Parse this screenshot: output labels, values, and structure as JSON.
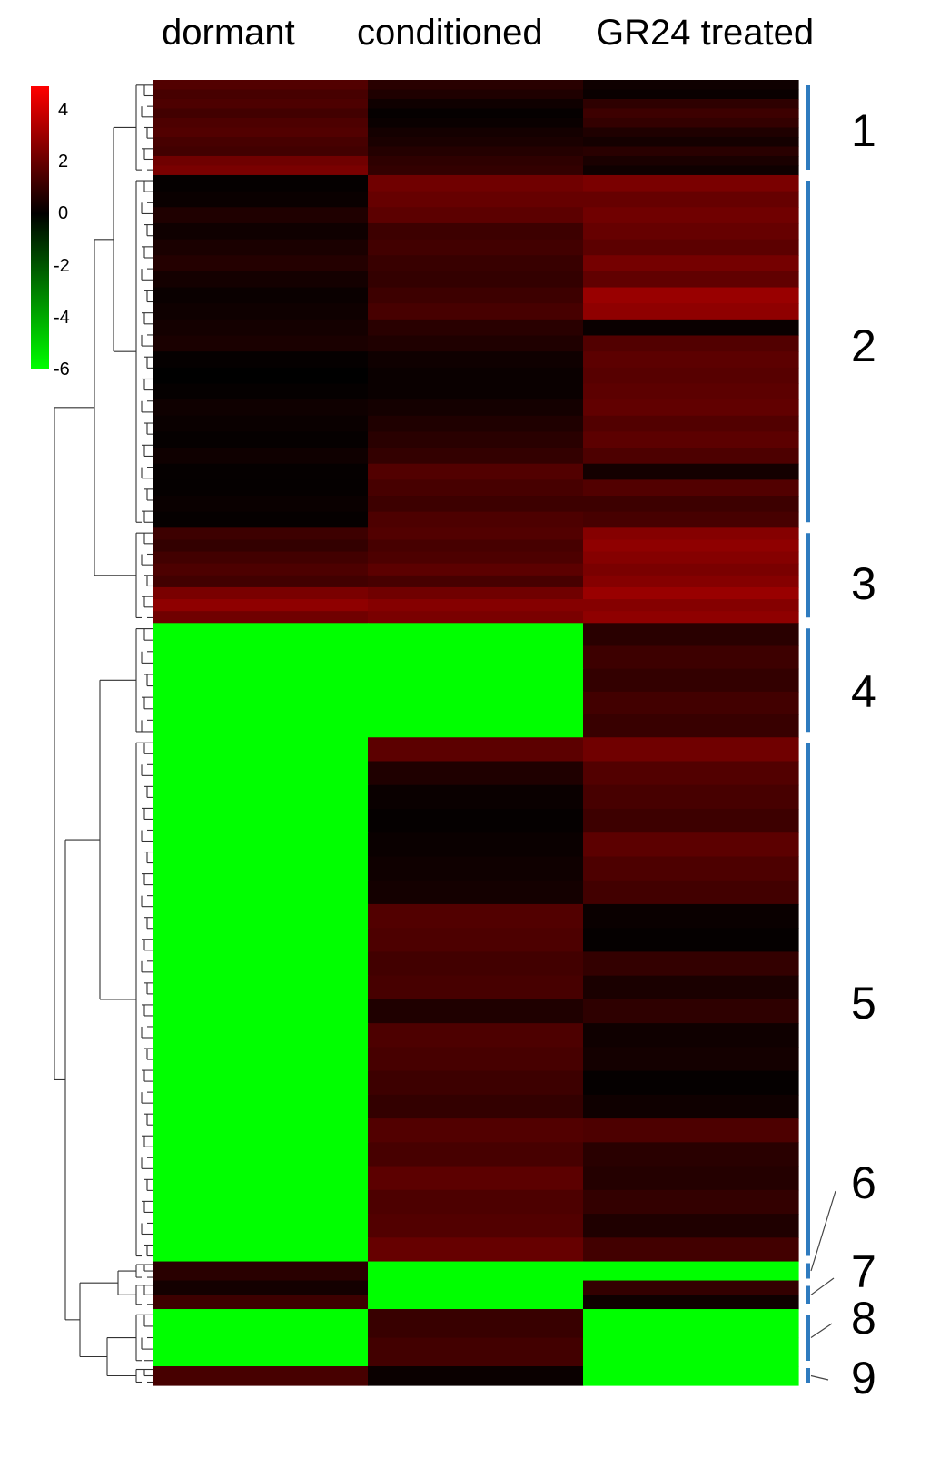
{
  "chart_data": {
    "type": "heatmap",
    "columns": [
      "dormant",
      "conditioned",
      "GR24 treated"
    ],
    "color_scale": {
      "min": -6,
      "max": 5,
      "ticks": [
        "4",
        "2",
        "0",
        "-2",
        "-4",
        "-6"
      ],
      "low_color": "#00ff00",
      "mid_color": "#000000",
      "high_color": "#ff0000"
    },
    "clusters": [
      {
        "label": "1",
        "rows": 20,
        "values": [
          [
            1.6,
            0.8,
            0.3
          ],
          [
            1.4,
            0.6,
            0.2
          ],
          [
            1.5,
            0.3,
            0.9
          ],
          [
            1.3,
            0.1,
            1.2
          ],
          [
            1.5,
            0.2,
            1.0
          ],
          [
            1.6,
            0.4,
            0.6
          ],
          [
            1.4,
            0.5,
            0.4
          ],
          [
            1.3,
            0.7,
            0.8
          ],
          [
            2.2,
            0.9,
            0.5
          ],
          [
            2.4,
            1.0,
            0.3
          ]
        ]
      },
      {
        "label": "2",
        "rows": 74,
        "values": [
          [
            0.1,
            2.2,
            2.4
          ],
          [
            0.2,
            2.0,
            2.0
          ],
          [
            0.6,
            1.8,
            2.2
          ],
          [
            0.3,
            1.2,
            2.0
          ],
          [
            0.5,
            1.3,
            1.8
          ],
          [
            0.7,
            1.1,
            2.3
          ],
          [
            0.4,
            1.0,
            1.9
          ],
          [
            0.2,
            1.2,
            3.0
          ],
          [
            0.3,
            1.4,
            2.8
          ],
          [
            0.4,
            0.8,
            0.2
          ],
          [
            0.5,
            0.6,
            1.6
          ],
          [
            0.1,
            0.3,
            1.8
          ],
          [
            0.0,
            0.2,
            1.7
          ],
          [
            0.1,
            0.2,
            1.8
          ],
          [
            0.3,
            0.4,
            1.9
          ],
          [
            0.2,
            0.6,
            1.6
          ],
          [
            0.1,
            0.8,
            1.8
          ],
          [
            0.3,
            1.0,
            1.5
          ],
          [
            0.1,
            1.6,
            0.4
          ],
          [
            0.1,
            1.4,
            1.6
          ],
          [
            0.2,
            1.2,
            1.2
          ],
          [
            0.1,
            1.5,
            1.4
          ]
        ]
      },
      {
        "label": "3",
        "rows": 20,
        "values": [
          [
            1.2,
            1.6,
            2.6
          ],
          [
            1.0,
            1.4,
            2.8
          ],
          [
            1.3,
            1.5,
            2.6
          ],
          [
            1.5,
            1.8,
            2.4
          ],
          [
            1.3,
            1.4,
            2.6
          ],
          [
            2.4,
            2.2,
            3.0
          ],
          [
            2.8,
            2.6,
            2.6
          ],
          [
            2.2,
            2.4,
            2.8
          ]
        ]
      },
      {
        "label": "4",
        "rows": 24,
        "values": [
          [
            -6,
            -6,
            0.8
          ],
          [
            -6,
            -6,
            1.2
          ],
          [
            -6,
            -6,
            1.0
          ],
          [
            -6,
            -6,
            1.3
          ],
          [
            -6,
            -6,
            1.1
          ]
        ]
      },
      {
        "label": "5",
        "rows": 110,
        "values": [
          [
            -6,
            1.8,
            2.2
          ],
          [
            -6,
            0.6,
            1.6
          ],
          [
            -6,
            0.2,
            1.4
          ],
          [
            -6,
            0.1,
            1.2
          ],
          [
            -6,
            0.2,
            1.8
          ],
          [
            -6,
            0.3,
            1.5
          ],
          [
            -6,
            0.4,
            1.3
          ],
          [
            -6,
            1.6,
            0.2
          ],
          [
            -6,
            1.5,
            0.1
          ],
          [
            -6,
            1.3,
            1.0
          ],
          [
            -6,
            1.4,
            0.5
          ],
          [
            -6,
            0.6,
            0.9
          ],
          [
            -6,
            1.5,
            0.3
          ],
          [
            -6,
            1.4,
            0.4
          ],
          [
            -6,
            1.2,
            0.1
          ],
          [
            -6,
            1.0,
            0.3
          ],
          [
            -6,
            1.6,
            1.5
          ],
          [
            -6,
            1.4,
            0.8
          ],
          [
            -6,
            1.8,
            0.7
          ],
          [
            -6,
            1.5,
            1.0
          ],
          [
            -6,
            1.6,
            0.6
          ],
          [
            -6,
            2.0,
            1.3
          ]
        ]
      },
      {
        "label": "6",
        "rows": 4,
        "values": [
          [
            0.8,
            -6,
            -6
          ]
        ]
      },
      {
        "label": "7",
        "rows": 6,
        "values": [
          [
            0.4,
            -6,
            1.0
          ],
          [
            1.2,
            -6,
            0.3
          ]
        ]
      },
      {
        "label": "8",
        "rows": 12,
        "values": [
          [
            -6,
            1.1,
            -6
          ],
          [
            -6,
            1.3,
            -6
          ]
        ]
      },
      {
        "label": "9",
        "rows": 4,
        "values": [
          [
            1.4,
            0.2,
            -6
          ]
        ]
      }
    ]
  }
}
